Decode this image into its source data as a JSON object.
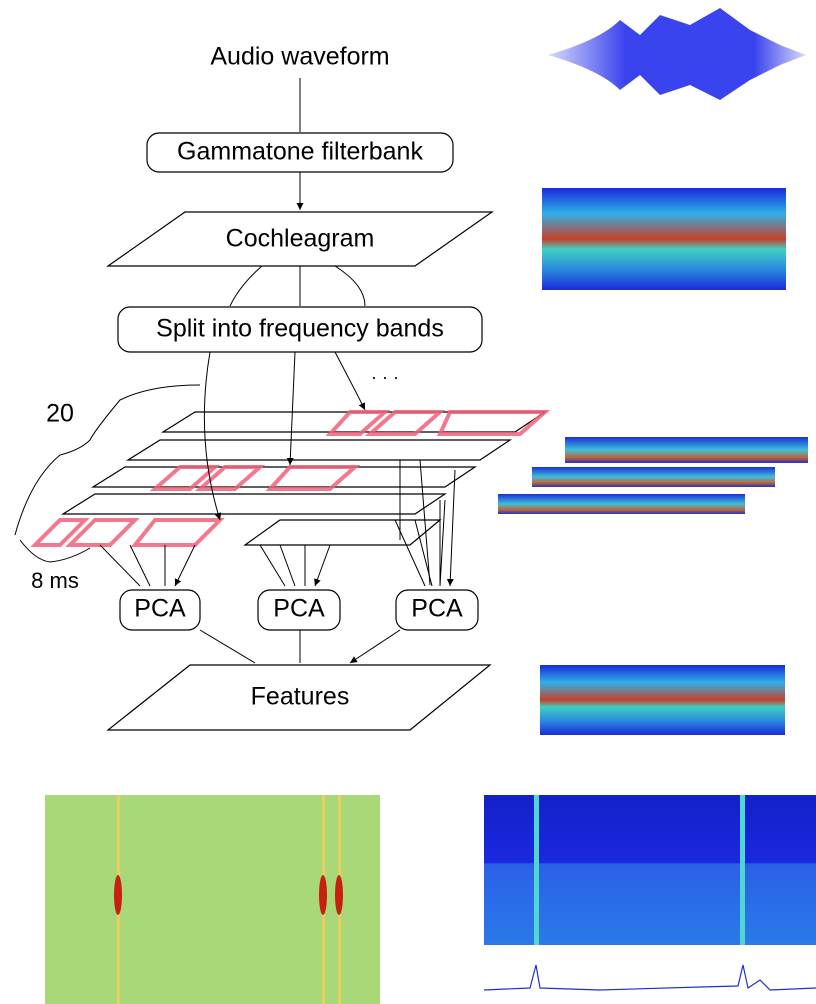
{
  "nodes": [
    {
      "label": "Audio waveform"
    },
    {
      "label": "Gammatone filterbank"
    },
    {
      "label": "Cochleagram"
    },
    {
      "label": "Split into frequency bands"
    },
    {
      "label": "PCA"
    },
    {
      "label": "PCA"
    },
    {
      "label": "PCA"
    },
    {
      "label": "Features"
    }
  ],
  "annotations": {
    "band_count": "20",
    "window": "8 ms",
    "more": "· · ·"
  }
}
